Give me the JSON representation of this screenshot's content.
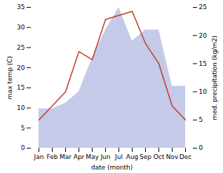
{
  "chart_data": {
    "type": "line",
    "xlabel": "date (month)",
    "ylabel": "max temp (C)",
    "y2label": "med. precipitation (kg/m2)",
    "categories": [
      "Jan",
      "Feb",
      "Mar",
      "Apr",
      "May",
      "Jun",
      "Jul",
      "Aug",
      "Sep",
      "Oct",
      "Nov",
      "Dec"
    ],
    "series": [
      {
        "type": "area",
        "axis": "y2",
        "color": "#c5cae9",
        "values": [
          7,
          7,
          8,
          10,
          16,
          21,
          25,
          19,
          21,
          21,
          11,
          11
        ]
      },
      {
        "type": "line",
        "color": "#c0392b",
        "values": [
          7,
          10.5,
          14,
          24,
          22,
          32,
          33,
          34,
          26,
          21,
          10.5,
          7
        ]
      }
    ],
    "ylim": [
      0,
      35
    ],
    "yticks": [
      0,
      5,
      10,
      15,
      20,
      25,
      30,
      35
    ],
    "y2lim": [
      0,
      25
    ],
    "y2ticks": [
      0,
      5,
      10,
      15,
      20,
      25
    ],
    "grid": false
  }
}
